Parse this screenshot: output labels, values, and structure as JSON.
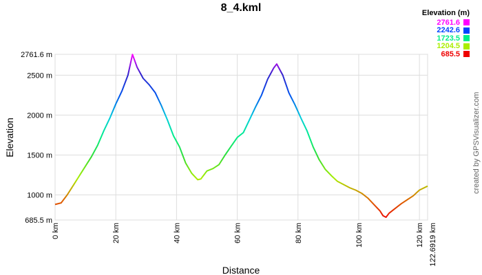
{
  "chart_data": {
    "type": "line",
    "title": "8_4.kml",
    "xlabel": "Distance",
    "ylabel": "Elevation",
    "xlim": [
      0,
      122.6919
    ],
    "ylim": [
      685.5,
      2761.6
    ],
    "x_ticks": [
      {
        "value": 0,
        "label": "0 km"
      },
      {
        "value": 20,
        "label": "20 km"
      },
      {
        "value": 40,
        "label": "40 km"
      },
      {
        "value": 60,
        "label": "60 km"
      },
      {
        "value": 80,
        "label": "80 km"
      },
      {
        "value": 100,
        "label": "100 km"
      },
      {
        "value": 120,
        "label": "120 km"
      },
      {
        "value": 122.6919,
        "label": "122.6919 km"
      }
    ],
    "y_ticks": [
      {
        "value": 685.5,
        "label": "685.5 m"
      },
      {
        "value": 1000,
        "label": "1000 m"
      },
      {
        "value": 1500,
        "label": "1500 m"
      },
      {
        "value": 2000,
        "label": "2000 m"
      },
      {
        "value": 2500,
        "label": "2500 m"
      },
      {
        "value": 2761.6,
        "label": "2761.6 m"
      }
    ],
    "grid": true,
    "legend": {
      "title": "Elevation (m)",
      "placement": "top-right",
      "entries": [
        {
          "label": "2761.6",
          "color": "#ff00ff"
        },
        {
          "label": "2242.6",
          "color": "#0044ff"
        },
        {
          "label": "1723.5",
          "color": "#00ee88"
        },
        {
          "label": "1204.5",
          "color": "#aaee00"
        },
        {
          "label": "685.5",
          "color": "#ee0000"
        }
      ]
    },
    "series": [
      {
        "x": [
          0,
          2,
          4,
          6,
          8,
          10,
          12,
          14,
          16,
          18,
          20,
          22,
          24,
          25.5,
          27,
          29,
          31,
          33,
          35,
          37,
          39,
          41,
          43,
          45,
          47,
          48,
          50,
          52,
          54,
          56,
          58,
          60,
          62,
          64,
          66,
          68,
          70,
          72,
          73,
          75,
          77,
          79,
          81,
          83,
          85,
          87,
          89,
          91,
          93,
          95,
          97,
          99,
          101,
          103,
          105,
          107,
          108,
          109,
          110,
          112,
          114,
          116,
          118,
          120,
          122.69
        ],
        "y": [
          880,
          900,
          1000,
          1120,
          1240,
          1360,
          1480,
          1620,
          1800,
          1960,
          2140,
          2300,
          2500,
          2760,
          2600,
          2460,
          2380,
          2280,
          2120,
          1940,
          1740,
          1600,
          1400,
          1270,
          1190,
          1200,
          1300,
          1330,
          1380,
          1500,
          1610,
          1720,
          1780,
          1940,
          2100,
          2250,
          2450,
          2590,
          2640,
          2500,
          2280,
          2130,
          1960,
          1800,
          1600,
          1440,
          1320,
          1240,
          1170,
          1130,
          1090,
          1060,
          1020,
          960,
          880,
          800,
          740,
          720,
          770,
          830,
          890,
          940,
          990,
          1060,
          1110
        ]
      }
    ]
  },
  "credit": "created by GPSVisualizer.com"
}
